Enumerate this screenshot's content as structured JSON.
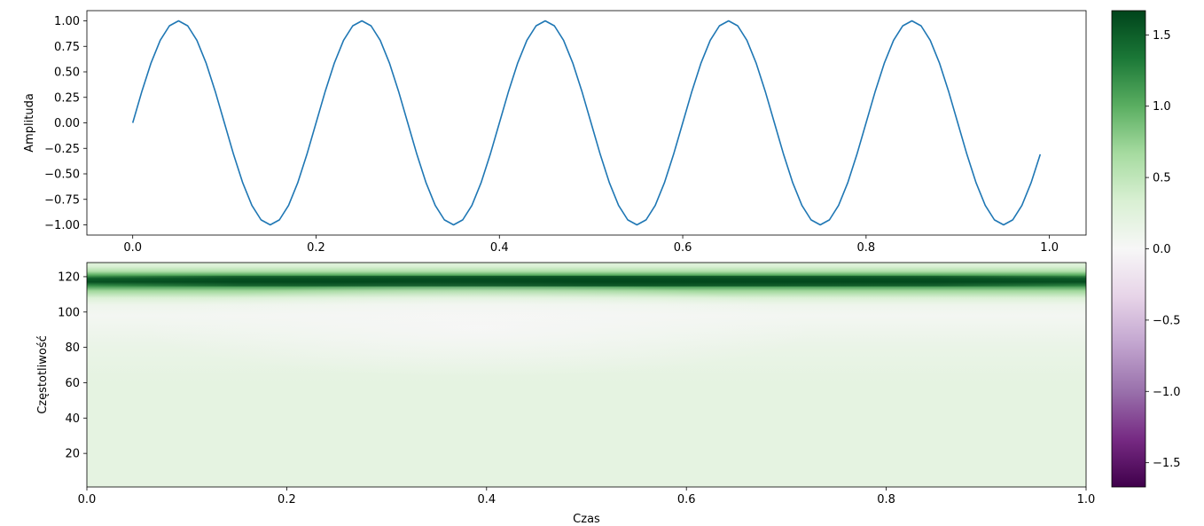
{
  "figure": {
    "background": "#ffffff"
  },
  "chart_data": [
    {
      "type": "line",
      "title": "",
      "xlabel": "",
      "ylabel": "Amplituda",
      "xlim": [
        -0.05,
        1.04
      ],
      "ylim": [
        -1.1,
        1.1
      ],
      "xticks": [
        0.0,
        0.2,
        0.4,
        0.6,
        0.8,
        1.0
      ],
      "xtick_labels": [
        "0.0",
        "0.2",
        "0.4",
        "0.6",
        "0.8",
        "1.0"
      ],
      "yticks": [
        1.0,
        0.75,
        0.5,
        0.25,
        0.0,
        -0.25,
        -0.5,
        -0.75,
        -1.0
      ],
      "ytick_labels": [
        "1.00",
        "0.75",
        "0.50",
        "0.25",
        "0.00",
        "−0.25",
        "−0.50",
        "−0.75",
        "−1.00"
      ],
      "series": [
        {
          "color": "#1f77b4",
          "function": "sin(2*pi*5*t)",
          "x_start": 0.0,
          "x_end": 0.99,
          "x_step": 0.01
        }
      ]
    },
    {
      "type": "heatmap",
      "title": "",
      "xlabel": "Czas",
      "ylabel": "Częstotliwość",
      "xlim": [
        0.0,
        1.0
      ],
      "ylim": [
        1,
        128
      ],
      "xticks": [
        0.0,
        0.2,
        0.4,
        0.6,
        0.8,
        1.0
      ],
      "xtick_labels": [
        "0.0",
        "0.2",
        "0.4",
        "0.6",
        "0.8",
        "1.0"
      ],
      "yticks": [
        20,
        40,
        60,
        80,
        100,
        120
      ],
      "ytick_labels": [
        "20",
        "40",
        "60",
        "80",
        "100",
        "120"
      ],
      "colormap": "PRGn",
      "value_range": [
        -1.67,
        1.67
      ],
      "row_profile": [
        {
          "freq": 1,
          "value": 0.2
        },
        {
          "freq": 60,
          "value": 0.2
        },
        {
          "freq": 80,
          "value": 0.15
        },
        {
          "freq": 98,
          "value": 0.05
        },
        {
          "freq": 104,
          "value": 0.1
        },
        {
          "freq": 108,
          "value": 0.3
        },
        {
          "freq": 112,
          "value": 0.7
        },
        {
          "freq": 115,
          "value": 1.2
        },
        {
          "freq": 117,
          "value": 1.6
        },
        {
          "freq": 119,
          "value": 1.5
        },
        {
          "freq": 121,
          "value": 1.0
        },
        {
          "freq": 123,
          "value": 0.6
        },
        {
          "freq": 126,
          "value": 0.3
        },
        {
          "freq": 128,
          "value": 0.3
        }
      ],
      "band_peak_freq": 117,
      "band_peak_value": 1.65
    }
  ],
  "colorbar": {
    "colormap": "PRGn",
    "range": [
      -1.67,
      1.67
    ],
    "stops": [
      "#40004b",
      "#762a83",
      "#9970ab",
      "#c2a5cf",
      "#e7d4e8",
      "#f7f7f7",
      "#d9f0d3",
      "#a6dba0",
      "#5aae61",
      "#1b7837",
      "#00441b"
    ],
    "ticks": [
      1.5,
      1.0,
      0.5,
      0.0,
      -0.5,
      -1.0,
      -1.5
    ],
    "tick_labels": [
      "1.5",
      "1.0",
      "0.5",
      "0.0",
      "−0.5",
      "−1.0",
      "−1.5"
    ]
  }
}
